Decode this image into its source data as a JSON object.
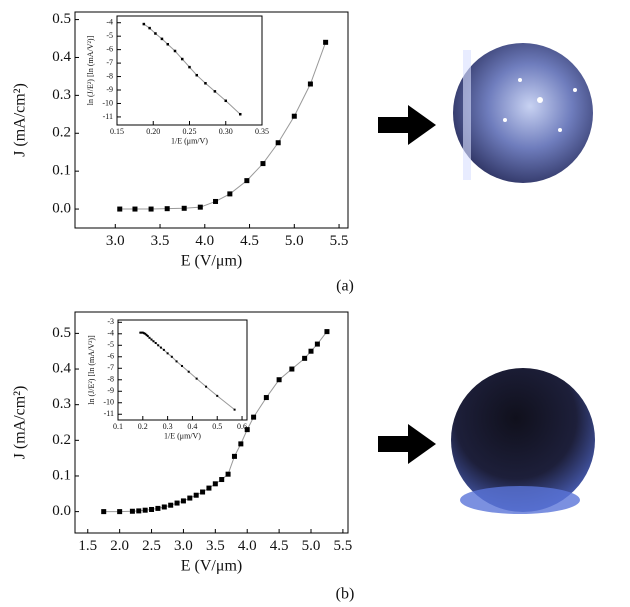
{
  "chart_data": [
    {
      "type": "line",
      "panel_label": "(a)",
      "x_label": "E (V/μm)",
      "y_label": "J (mA/cm²)",
      "color": "#000000",
      "x": [
        3.05,
        3.22,
        3.4,
        3.58,
        3.77,
        3.95,
        4.12,
        4.28,
        4.47,
        4.65,
        4.82,
        5.0,
        5.18,
        5.35
      ],
      "values": [
        0.0,
        0.0,
        0.0,
        0.001,
        0.002,
        0.005,
        0.02,
        0.04,
        0.075,
        0.12,
        0.175,
        0.245,
        0.33,
        0.44
      ],
      "xlim": [
        2.55,
        5.6
      ],
      "ylim": [
        -0.05,
        0.52
      ],
      "xticks": [
        {
          "value": 3.0,
          "label": "3.0"
        },
        3.5,
        {
          "value": 4.0,
          "label": "4.0"
        },
        4.5,
        {
          "value": 5.0,
          "label": "5.0"
        },
        5.5
      ],
      "yticks": [
        {
          "value": 0.0,
          "label": "0.0"
        },
        0.1,
        0.2,
        0.3,
        0.4,
        0.5
      ]
    },
    {
      "type": "line",
      "x_label": "1/E (μm/V)",
      "y_label": "ln (J/E²) [ln (mA/V²)]",
      "color": "#000000",
      "x": [
        0.187,
        0.195,
        0.203,
        0.212,
        0.22,
        0.23,
        0.24,
        0.25,
        0.26,
        0.272,
        0.285,
        0.3,
        0.32
      ],
      "values": [
        -4.1,
        -4.4,
        -4.8,
        -5.2,
        -5.6,
        -6.1,
        -6.7,
        -7.3,
        -7.9,
        -8.5,
        -9.1,
        -9.8,
        -10.8
      ],
      "xlim": [
        0.15,
        0.35
      ],
      "ylim": [
        -11.6,
        -3.5
      ],
      "xticks": [
        0.15,
        {
          "value": 0.2,
          "label": "0.20"
        },
        0.25,
        {
          "value": 0.3,
          "label": "0.30"
        },
        0.35
      ],
      "yticks": [
        -4,
        -5,
        -6,
        -7,
        -8,
        -9,
        -10,
        -11
      ]
    },
    {
      "type": "line",
      "panel_label": "(b)",
      "x_label": "E (V/μm)",
      "y_label": "J (mA/cm²)",
      "color": "#000000",
      "x": [
        1.75,
        2.0,
        2.2,
        2.3,
        2.4,
        2.5,
        2.6,
        2.7,
        2.8,
        2.9,
        3.0,
        3.1,
        3.2,
        3.3,
        3.4,
        3.5,
        3.6,
        3.7,
        3.8,
        3.9,
        4.0,
        4.1,
        4.3,
        4.5,
        4.7,
        4.9,
        5.0,
        5.1,
        5.25
      ],
      "values": [
        0.0,
        0.0,
        0.001,
        0.002,
        0.004,
        0.006,
        0.009,
        0.013,
        0.018,
        0.024,
        0.03,
        0.038,
        0.046,
        0.055,
        0.066,
        0.078,
        0.09,
        0.105,
        0.155,
        0.19,
        0.23,
        0.265,
        0.32,
        0.37,
        0.4,
        0.43,
        0.45,
        0.47,
        0.505
      ],
      "xlim": [
        1.3,
        5.58
      ],
      "ylim": [
        -0.06,
        0.56
      ],
      "xticks": [
        1.5,
        {
          "value": 2.0,
          "label": "2.0"
        },
        2.5,
        {
          "value": 3.0,
          "label": "3.0"
        },
        3.5,
        {
          "value": 4.0,
          "label": "4.0"
        },
        4.5,
        {
          "value": 5.0,
          "label": "5.0"
        },
        5.5
      ],
      "yticks": [
        {
          "value": 0.0,
          "label": "0.0"
        },
        0.1,
        0.2,
        0.3,
        0.4,
        0.5
      ]
    },
    {
      "type": "line",
      "x_label": "1/E (μm/V)",
      "y_label": "ln (J/E²) [ln (mA/V²)]",
      "color": "#000000",
      "x": [
        0.19,
        0.195,
        0.2,
        0.205,
        0.21,
        0.215,
        0.22,
        0.227,
        0.235,
        0.243,
        0.252,
        0.262,
        0.273,
        0.285,
        0.3,
        0.317,
        0.336,
        0.358,
        0.385,
        0.417,
        0.455,
        0.5,
        0.57
      ],
      "values": [
        -3.9,
        -3.9,
        -3.9,
        -3.95,
        -4.0,
        -4.1,
        -4.2,
        -4.35,
        -4.5,
        -4.65,
        -4.8,
        -5.0,
        -5.2,
        -5.4,
        -5.7,
        -6.0,
        -6.4,
        -6.8,
        -7.3,
        -7.9,
        -8.6,
        -9.4,
        -10.6
      ],
      "xlim": [
        0.1,
        0.62
      ],
      "ylim": [
        -11.5,
        -2.8
      ],
      "xticks": [
        0.1,
        0.2,
        0.3,
        0.4,
        0.5,
        0.6
      ],
      "yticks": [
        -3,
        -4,
        -5,
        -6,
        -7,
        -8,
        -9,
        -10,
        -11
      ]
    }
  ]
}
